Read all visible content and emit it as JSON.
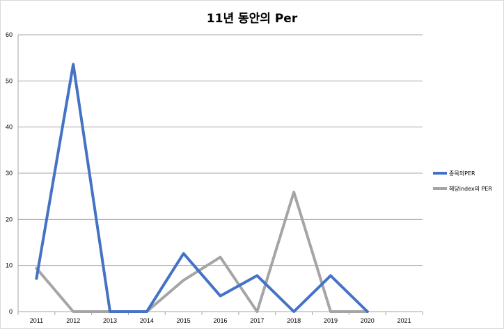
{
  "chart_data": {
    "type": "line",
    "title": "11년 동안의 Per",
    "xlabel": "",
    "ylabel": "",
    "categories": [
      "2011",
      "2012",
      "2013",
      "2014",
      "2015",
      "2016",
      "2017",
      "2018",
      "2019",
      "2020",
      "2021"
    ],
    "ylim": [
      0,
      60
    ],
    "yticks": [
      "0",
      "10",
      "20",
      "30",
      "40",
      "50",
      "60"
    ],
    "grid": true,
    "legend_position": "right",
    "series": [
      {
        "name": "종목의PER",
        "color": "#4472c4",
        "values": [
          7.2,
          53.6,
          0,
          0,
          12.6,
          3.4,
          7.8,
          0,
          7.8,
          0,
          null
        ]
      },
      {
        "name": "해당index의 PER",
        "color": "#a5a5a5",
        "values": [
          9.4,
          0,
          0,
          0,
          6.8,
          11.8,
          0,
          25.9,
          0,
          0,
          null
        ]
      }
    ]
  }
}
